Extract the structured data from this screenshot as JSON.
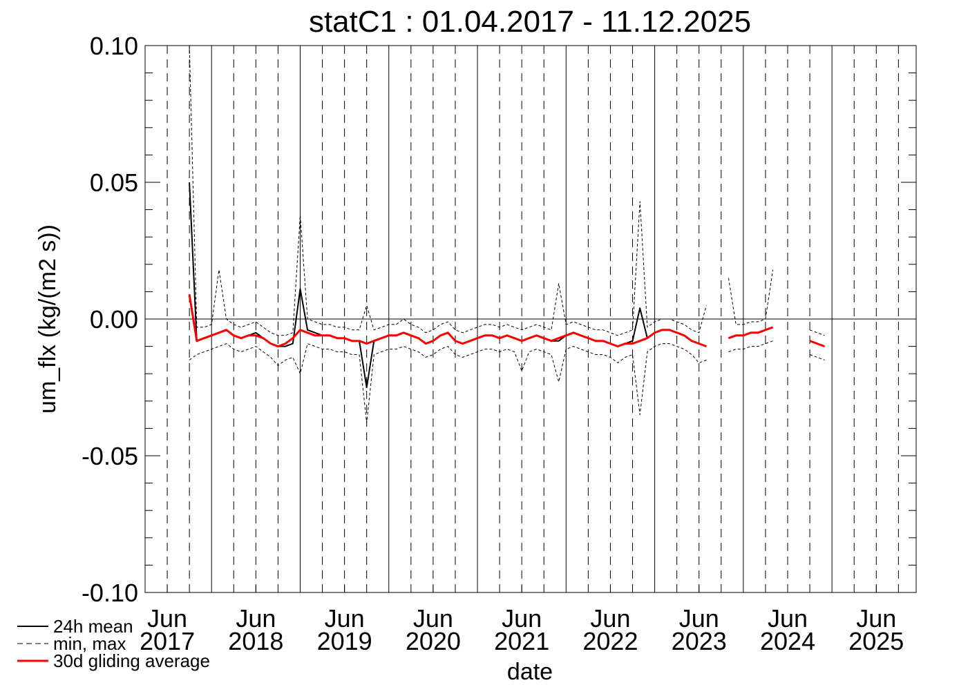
{
  "chart_data": {
    "type": "line",
    "title": "statC1 : 01.04.2017 - 11.12.2025",
    "x_label": "date",
    "y_label": "um_flx (kg/(m2 s))",
    "xlim": [
      2017.25,
      2025.95
    ],
    "ylim": [
      -0.1,
      0.1
    ],
    "yticks": [
      {
        "value": -0.1,
        "label": "-0.10"
      },
      {
        "value": -0.05,
        "label": "-0.05"
      },
      {
        "value": 0,
        "label": "0.00"
      },
      {
        "value": 0.05,
        "label": "0.05"
      },
      {
        "value": 0.1,
        "label": "0.10"
      }
    ],
    "yminor_ticks": [
      -0.09,
      -0.08,
      -0.07,
      -0.06,
      -0.04,
      -0.03,
      -0.02,
      -0.01,
      0.01,
      0.02,
      0.03,
      0.04,
      0.06,
      0.07,
      0.08,
      0.09
    ],
    "xticks": [
      {
        "value": 2017.5,
        "label": "Jun 2017"
      },
      {
        "value": 2018.5,
        "label": "Jun 2018"
      },
      {
        "value": 2019.5,
        "label": "Jun 2019"
      },
      {
        "value": 2020.5,
        "label": "Jun 2020"
      },
      {
        "value": 2021.5,
        "label": "Jun 2021"
      },
      {
        "value": 2022.5,
        "label": "Jun 2022"
      },
      {
        "value": 2023.5,
        "label": "Jun 2023"
      },
      {
        "value": 2024.5,
        "label": "Jun 2024"
      },
      {
        "value": 2025.5,
        "label": "Jun 2025"
      }
    ],
    "xgrid_major": [
      2018,
      2019,
      2020,
      2021,
      2022,
      2023,
      2024,
      2025
    ],
    "xgrid_minor": [
      2017.5,
      2017.75,
      2018.25,
      2018.5,
      2018.75,
      2019.25,
      2019.5,
      2019.75,
      2020.25,
      2020.5,
      2020.75,
      2021.25,
      2021.5,
      2021.75,
      2022.25,
      2022.5,
      2022.75,
      2023.25,
      2023.5,
      2023.75,
      2024.25,
      2024.5,
      2024.75,
      2025.25,
      2025.5,
      2025.75
    ],
    "zero_line": true,
    "legend": "bottom-left",
    "x": [
      2017.75,
      2017.833,
      2017.917,
      2018.0,
      2018.083,
      2018.167,
      2018.25,
      2018.333,
      2018.417,
      2018.5,
      2018.583,
      2018.667,
      2018.75,
      2018.833,
      2018.917,
      2019.0,
      2019.083,
      2019.167,
      2019.25,
      2019.333,
      2019.417,
      2019.5,
      2019.583,
      2019.667,
      2019.75,
      2019.833,
      2019.917,
      2020.0,
      2020.083,
      2020.167,
      2020.25,
      2020.333,
      2020.417,
      2020.5,
      2020.583,
      2020.667,
      2020.75,
      2020.833,
      2020.917,
      2021.0,
      2021.083,
      2021.167,
      2021.25,
      2021.333,
      2021.417,
      2021.5,
      2021.583,
      2021.667,
      2021.75,
      2021.833,
      2021.917,
      2022.0,
      2022.083,
      2022.167,
      2022.25,
      2022.333,
      2022.417,
      2022.5,
      2022.583,
      2022.667,
      2022.75,
      2022.833,
      2022.917,
      2023.0,
      2023.083,
      2023.167,
      2023.25,
      2023.333,
      2023.417,
      2023.5,
      2023.583,
      2023.667,
      2023.75,
      2023.833,
      2023.917,
      2024.0,
      2024.083,
      2024.167,
      2024.25,
      2024.333,
      2024.417,
      2024.5,
      2024.583,
      2024.667,
      2024.75,
      2024.833,
      2024.917
    ],
    "series": [
      {
        "name": "24h mean",
        "color": "#000000",
        "dash": "solid",
        "width": 2,
        "values": [
          0.05,
          -0.008,
          -0.007,
          -0.006,
          -0.005,
          -0.004,
          -0.006,
          -0.007,
          -0.006,
          -0.005,
          -0.007,
          -0.009,
          -0.01,
          -0.01,
          -0.009,
          0.011,
          -0.004,
          -0.005,
          -0.006,
          -0.006,
          -0.007,
          -0.007,
          -0.008,
          -0.008,
          -0.025,
          -0.008,
          -0.007,
          -0.006,
          -0.006,
          -0.005,
          -0.006,
          -0.007,
          -0.009,
          -0.008,
          -0.006,
          -0.005,
          -0.008,
          -0.009,
          -0.008,
          -0.007,
          -0.006,
          -0.006,
          -0.007,
          -0.006,
          -0.007,
          -0.008,
          -0.007,
          -0.006,
          -0.007,
          -0.008,
          -0.008,
          -0.006,
          -0.005,
          -0.006,
          -0.007,
          -0.008,
          -0.008,
          -0.009,
          -0.01,
          -0.009,
          -0.008,
          0.004,
          -0.007,
          -0.005,
          -0.004,
          -0.004,
          -0.005,
          -0.006,
          -0.008,
          -0.009,
          -0.01,
          null,
          null,
          -0.007,
          -0.006,
          -0.006,
          -0.005,
          -0.005,
          -0.004,
          -0.003,
          null,
          null,
          null,
          null,
          -0.008,
          -0.009,
          -0.01
        ]
      },
      {
        "name": "min, max",
        "color": "#000000",
        "dash": "dashed",
        "width": 1,
        "values": [
          0.1,
          -0.003,
          -0.003,
          -0.002,
          0.018,
          0.0,
          -0.002,
          -0.003,
          -0.002,
          -0.001,
          -0.003,
          -0.005,
          -0.006,
          -0.006,
          -0.005,
          0.038,
          0.0,
          -0.001,
          -0.002,
          -0.002,
          -0.003,
          -0.003,
          -0.004,
          -0.004,
          0.005,
          -0.004,
          -0.003,
          -0.002,
          -0.002,
          0.0,
          -0.002,
          -0.003,
          -0.005,
          -0.004,
          -0.002,
          -0.001,
          -0.004,
          -0.005,
          -0.004,
          -0.003,
          -0.002,
          -0.002,
          -0.003,
          -0.002,
          -0.003,
          -0.004,
          -0.003,
          -0.002,
          -0.003,
          -0.004,
          0.013,
          -0.002,
          -0.001,
          -0.002,
          -0.003,
          -0.004,
          -0.004,
          -0.005,
          -0.006,
          -0.005,
          -0.004,
          0.043,
          -0.003,
          -0.001,
          0.0,
          0.0,
          -0.001,
          -0.002,
          -0.004,
          -0.005,
          0.005,
          null,
          null,
          0.015,
          -0.002,
          -0.002,
          -0.001,
          -0.001,
          0.0,
          0.018,
          null,
          null,
          null,
          null,
          -0.004,
          -0.005,
          -0.006
        ],
        "min_values": [
          -0.015,
          -0.013,
          -0.012,
          -0.011,
          -0.01,
          -0.009,
          -0.011,
          -0.012,
          -0.011,
          -0.01,
          -0.012,
          -0.014,
          -0.017,
          -0.015,
          -0.014,
          -0.02,
          -0.009,
          -0.01,
          -0.011,
          -0.011,
          -0.012,
          -0.012,
          -0.013,
          -0.013,
          -0.038,
          -0.013,
          -0.012,
          -0.011,
          -0.011,
          -0.01,
          -0.011,
          -0.012,
          -0.014,
          -0.013,
          -0.011,
          -0.01,
          -0.013,
          -0.014,
          -0.013,
          -0.012,
          -0.011,
          -0.011,
          -0.012,
          -0.011,
          -0.012,
          -0.019,
          -0.012,
          -0.011,
          -0.012,
          -0.013,
          -0.023,
          -0.011,
          -0.01,
          -0.011,
          -0.012,
          -0.013,
          -0.013,
          -0.014,
          -0.016,
          -0.014,
          -0.013,
          -0.035,
          -0.012,
          -0.01,
          -0.009,
          -0.009,
          -0.01,
          -0.011,
          -0.013,
          -0.016,
          -0.015,
          null,
          null,
          -0.012,
          -0.011,
          -0.011,
          -0.01,
          -0.01,
          -0.009,
          -0.008,
          null,
          null,
          null,
          null,
          -0.013,
          -0.014,
          -0.015
        ]
      },
      {
        "name": "30d gliding average",
        "color": "#ff0000",
        "dash": "solid",
        "width": 3,
        "values": [
          0.009,
          -0.008,
          -0.007,
          -0.006,
          -0.005,
          -0.004,
          -0.006,
          -0.007,
          -0.006,
          -0.006,
          -0.007,
          -0.009,
          -0.01,
          -0.009,
          -0.007,
          -0.004,
          -0.005,
          -0.006,
          -0.006,
          -0.006,
          -0.007,
          -0.007,
          -0.008,
          -0.008,
          -0.009,
          -0.008,
          -0.007,
          -0.006,
          -0.006,
          -0.005,
          -0.006,
          -0.007,
          -0.009,
          -0.008,
          -0.006,
          -0.005,
          -0.008,
          -0.009,
          -0.008,
          -0.007,
          -0.006,
          -0.006,
          -0.007,
          -0.006,
          -0.007,
          -0.008,
          -0.007,
          -0.006,
          -0.007,
          -0.008,
          -0.007,
          -0.006,
          -0.005,
          -0.006,
          -0.007,
          -0.008,
          -0.008,
          -0.009,
          -0.01,
          -0.009,
          -0.009,
          -0.008,
          -0.007,
          -0.005,
          -0.004,
          -0.004,
          -0.005,
          -0.006,
          -0.008,
          -0.009,
          -0.01,
          null,
          null,
          -0.007,
          -0.006,
          -0.006,
          -0.005,
          -0.005,
          -0.004,
          -0.003,
          null,
          null,
          null,
          null,
          -0.008,
          -0.009,
          -0.01
        ]
      }
    ]
  }
}
